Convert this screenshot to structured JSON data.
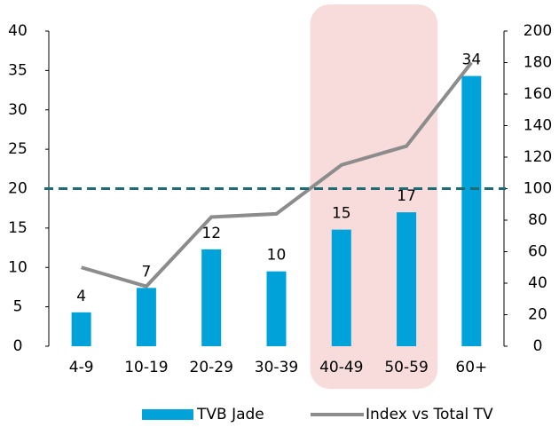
{
  "chart_data": {
    "type": "bar",
    "categories": [
      "4-9",
      "10-19",
      "20-29",
      "30-39",
      "40-49",
      "50-59",
      "60+"
    ],
    "series": [
      {
        "name": "TVB Jade",
        "type": "bar",
        "color": "#00a3d9",
        "values": [
          4.3,
          7.4,
          12.3,
          9.5,
          14.8,
          17,
          34.3
        ],
        "value_labels": [
          "4",
          "7",
          "12",
          "10",
          "15",
          "17",
          "34"
        ]
      },
      {
        "name": "Index vs Total TV",
        "type": "line",
        "axis": "y2",
        "color": "#8c8c8c",
        "values": [
          50,
          38,
          82,
          84,
          115,
          127,
          180
        ]
      }
    ],
    "ylim": [
      0,
      40
    ],
    "yticks": [
      0,
      5,
      10,
      15,
      20,
      25,
      30,
      35,
      40
    ],
    "y2lim": [
      0,
      200
    ],
    "y2ticks": [
      0,
      20,
      40,
      60,
      80,
      100,
      120,
      140,
      160,
      180,
      200
    ],
    "reference_line": {
      "axis": "y2",
      "value": 100,
      "color": "#1f6b75"
    },
    "highlight_categories": [
      4,
      5
    ],
    "highlight_color": "#f8dcdc",
    "grid": false,
    "legend": "bottom"
  }
}
